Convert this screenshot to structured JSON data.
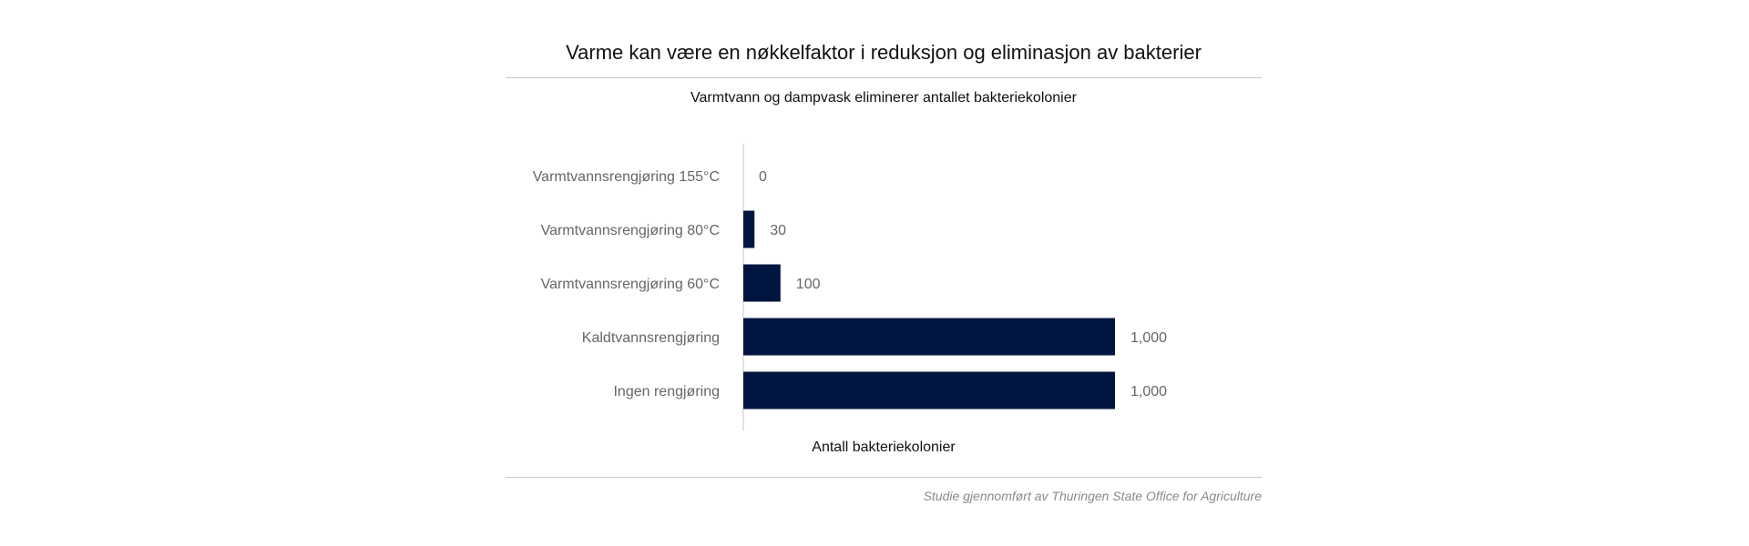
{
  "chart_data": {
    "type": "bar",
    "orientation": "horizontal",
    "title": "Varme kan være en nøkkelfaktor i reduksjon og eliminasjon av bakterier",
    "subtitle": "Varmtvann og dampvask eliminerer antallet bakteriekolonier",
    "xlabel": "Antall bakteriekolonier",
    "ylabel": "",
    "categories": [
      "Varmtvannsrengjøring 155°C",
      "Varmtvannsrengjøring 80°C",
      "Varmtvannsrengjøring 60°C",
      "Kaldtvannsrengjøring",
      "Ingen rengjøring"
    ],
    "values": [
      0,
      30,
      100,
      1000,
      1000
    ],
    "value_labels": [
      "0",
      "30",
      "100",
      "1,000",
      "1,000"
    ],
    "xlim": [
      0,
      1000
    ],
    "grid": false,
    "legend": "none",
    "bar_color": "#001540",
    "source": "Studie gjennomført av Thuringen State Office for Agriculture"
  }
}
